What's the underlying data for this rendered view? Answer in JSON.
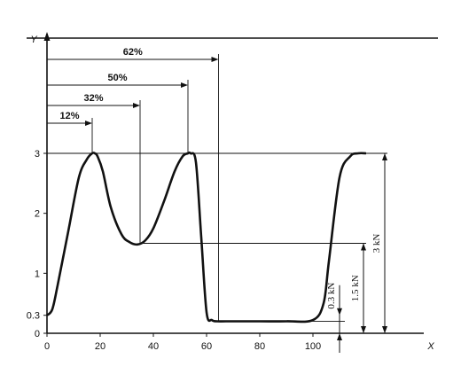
{
  "chart_data": {
    "type": "line",
    "title": "",
    "xlabel": "X",
    "ylabel": "Y",
    "xlim": [
      0,
      125
    ],
    "ylim": [
      0,
      3
    ],
    "x_ticks": [
      0,
      20,
      40,
      60,
      80,
      100
    ],
    "y_ticks": [
      0,
      0.3,
      1,
      2,
      3
    ],
    "x_tick_labels": [
      "0",
      "20",
      "40",
      "60",
      "80",
      "100"
    ],
    "y_tick_labels": [
      "0",
      "0.3",
      "1",
      "2",
      "3"
    ],
    "grid": false,
    "series": [
      {
        "x": [
          0,
          2,
          4,
          8,
          12,
          15,
          17,
          18,
          19,
          21,
          24,
          28,
          31,
          34,
          37,
          40,
          44,
          48,
          51,
          53,
          54,
          56,
          58,
          60,
          62,
          64,
          68,
          80,
          90,
          100,
          104,
          106,
          110,
          114,
          117,
          120
        ],
        "y": [
          0.3,
          0.4,
          0.8,
          1.7,
          2.6,
          2.9,
          3.0,
          3.0,
          2.95,
          2.7,
          2.1,
          1.65,
          1.52,
          1.48,
          1.55,
          1.75,
          2.2,
          2.7,
          2.95,
          3.0,
          3.0,
          2.85,
          1.6,
          0.35,
          0.22,
          0.2,
          0.2,
          0.2,
          0.2,
          0.22,
          0.5,
          1.2,
          2.6,
          2.95,
          3.0,
          3.0
        ]
      }
    ],
    "percent_markers": [
      {
        "label": "12%",
        "x": 17,
        "y": 3.0
      },
      {
        "label": "32%",
        "x": 35,
        "y": 1.5
      },
      {
        "label": "50%",
        "x": 53,
        "y": 3.0
      },
      {
        "label": "62%",
        "x": 64.5,
        "y": 0.2
      }
    ],
    "reference_lines": [
      {
        "y": 3.0,
        "x_from": 0,
        "x_to": 128
      },
      {
        "y": 1.5,
        "x_from": 35,
        "x_to": 120
      },
      {
        "y": 0.2,
        "x_from": 64,
        "x_to": 112
      }
    ],
    "force_dimensions": [
      {
        "label": "0.3 kN",
        "x": 110,
        "y_from": 0.0,
        "y_to": 0.3
      },
      {
        "label": "1.5 kN",
        "x": 119,
        "y_from": 0.0,
        "y_to": 1.5
      },
      {
        "label": "3 kN",
        "x": 127,
        "y_from": 0.0,
        "y_to": 3.0
      }
    ]
  }
}
